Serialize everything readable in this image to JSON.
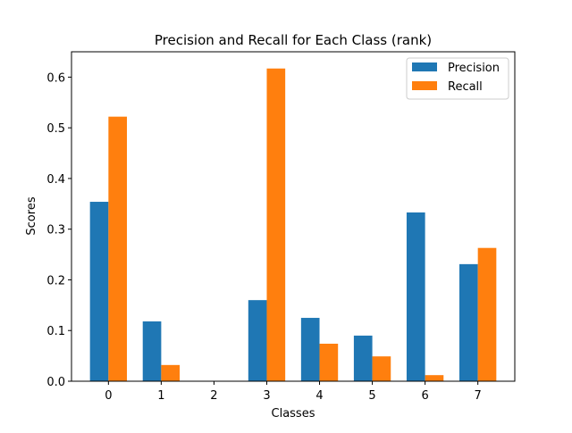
{
  "chart_data": {
    "type": "bar",
    "title": "Precision and Recall for Each Class (rank)",
    "xlabel": "Classes",
    "ylabel": "Scores",
    "categories": [
      "0",
      "1",
      "2",
      "3",
      "4",
      "5",
      "6",
      "7"
    ],
    "series": [
      {
        "name": "Precision",
        "color": "#1f77b4",
        "values": [
          0.354,
          0.118,
          0.0,
          0.16,
          0.125,
          0.09,
          0.333,
          0.231
        ]
      },
      {
        "name": "Recall",
        "color": "#ff7f0e",
        "values": [
          0.522,
          0.032,
          0.0,
          0.617,
          0.074,
          0.049,
          0.012,
          0.263
        ]
      }
    ],
    "ylim": [
      0,
      0.65
    ],
    "yticks": [
      "0.0",
      "0.1",
      "0.2",
      "0.3",
      "0.4",
      "0.5",
      "0.6"
    ],
    "ytick_values": [
      0.0,
      0.1,
      0.2,
      0.3,
      0.4,
      0.5,
      0.6
    ],
    "grid": false,
    "legend_position": "top-right"
  }
}
